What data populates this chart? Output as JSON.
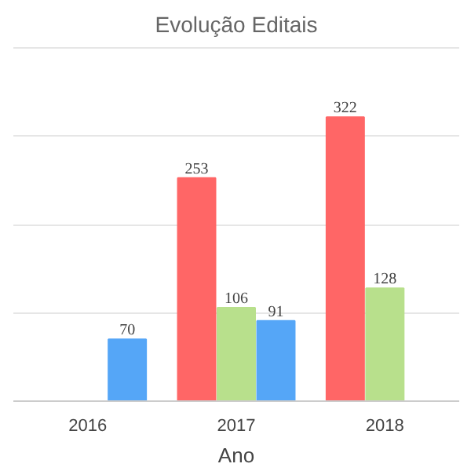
{
  "chart_data": {
    "type": "bar",
    "title": "Evolução Editais",
    "xlabel": "Ano",
    "categories": [
      "2016",
      "2017",
      "2018"
    ],
    "series": [
      {
        "color": "#ff6666",
        "values": [
          null,
          253,
          322
        ],
        "value_labels": [
          null,
          "253",
          "322"
        ]
      },
      {
        "color": "#b8e08c",
        "values": [
          null,
          106,
          128
        ],
        "value_labels": [
          null,
          "106",
          "128"
        ]
      },
      {
        "color": "#55a6f7",
        "values": [
          70,
          91,
          null
        ],
        "value_labels": [
          "70",
          "91",
          null
        ]
      }
    ],
    "yticks": [
      {
        "value": 0,
        "label": null
      },
      {
        "value": 100,
        "label": null
      },
      {
        "value": 200,
        "label": null
      },
      {
        "value": 300,
        "label": null
      },
      {
        "value": 400,
        "label": null
      }
    ],
    "grid": "y",
    "tick_labels": "x"
  }
}
